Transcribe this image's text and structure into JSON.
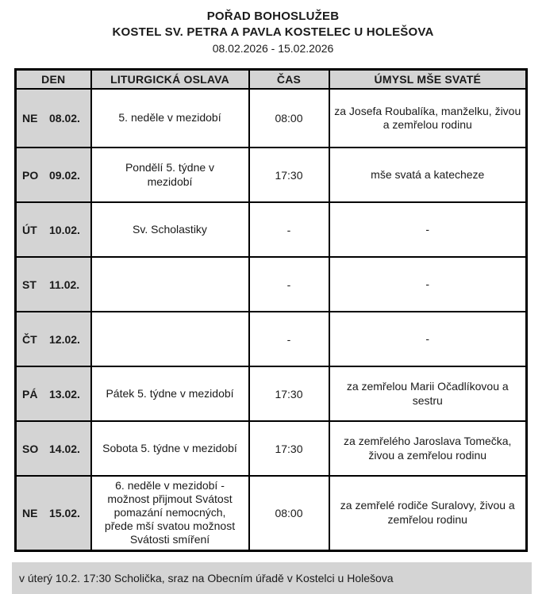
{
  "header": {
    "title": "POŘAD BOHOSLUŽEB",
    "subtitle": "KOSTEL SV. PETRA A PAVLA KOSTELEC U HOLEŠOVA",
    "date_range": "08.02.2026 - 15.02.2026"
  },
  "table": {
    "columns": [
      "DEN",
      "LITURGICKÁ OSLAVA",
      "ČAS",
      "ÚMYSL MŠE SVATÉ"
    ],
    "rows": [
      {
        "day": "NE",
        "date": "08.02.",
        "celebration": "5. neděle v mezidobí",
        "time": "08:00",
        "intention": "za Josefa Roubalíka, manželku, živou a zemřelou rodinu"
      },
      {
        "day": "PO",
        "date": "09.02.",
        "celebration": "Pondělí 5. týdne v mezidobí",
        "time": "17:30",
        "intention": "mše svatá a katecheze"
      },
      {
        "day": "ÚT",
        "date": "10.02.",
        "celebration": "Sv. Scholastiky",
        "time": "-",
        "intention": "-"
      },
      {
        "day": "ST",
        "date": "11.02.",
        "celebration": "",
        "time": "-",
        "intention": "-"
      },
      {
        "day": "ČT",
        "date": "12.02.",
        "celebration": "",
        "time": "-",
        "intention": "-"
      },
      {
        "day": "PÁ",
        "date": "13.02.",
        "celebration": "Pátek 5. týdne v mezidobí",
        "time": "17:30",
        "intention": "za zemřelou Marii Očadlíkovou a sestru"
      },
      {
        "day": "SO",
        "date": "14.02.",
        "celebration": "Sobota 5. týdne v mezidobí",
        "time": "17:30",
        "intention": "za zemřelého Jaroslava Tomečka, živou a zemřelou rodinu"
      },
      {
        "day": "NE",
        "date": "15.02.",
        "celebration": "6. neděle v mezidobí - možnost přijmout Svátost pomazání nemocných, přede mší svatou možnost Svátosti smíření",
        "time": "08:00",
        "intention": "za zemřelé rodiče Suralovy, živou a zemřelou rodinu"
      }
    ]
  },
  "footer": {
    "note": "v úterý 10.2. 17:30 Scholička, sraz na Obecním úřadě v Kostelci u Holešova"
  },
  "colors": {
    "cell_gray": "#d4d4d4",
    "border_black": "#000000",
    "page_background": "#ffffff"
  }
}
